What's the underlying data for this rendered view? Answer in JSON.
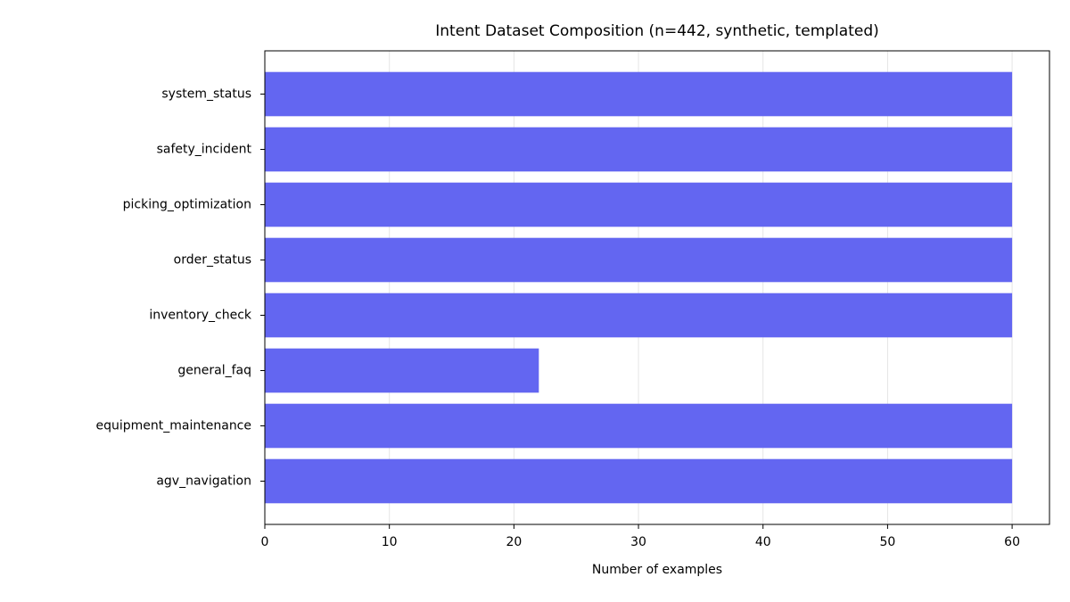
{
  "chart_data": {
    "type": "bar",
    "orientation": "horizontal",
    "title": "Intent Dataset Composition (n=442, synthetic, templated)",
    "x_label": "Number of examples",
    "categories": [
      "system_status",
      "safety_incident",
      "picking_optimization",
      "order_status",
      "inventory_check",
      "general_faq",
      "equipment_maintenance",
      "agv_navigation"
    ],
    "values": [
      60,
      60,
      60,
      60,
      60,
      22,
      60,
      60
    ],
    "color": "#6366f1",
    "xlim": [
      0,
      63
    ],
    "xticks": [
      0,
      10,
      20,
      30,
      40,
      50,
      60
    ],
    "grid": true
  }
}
